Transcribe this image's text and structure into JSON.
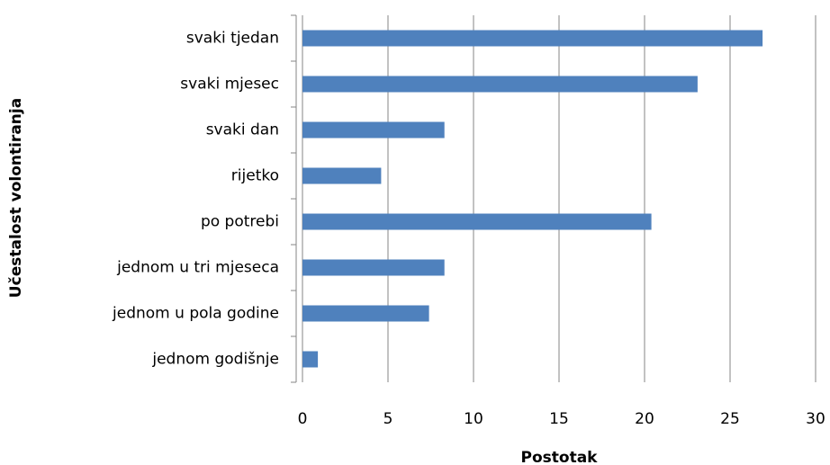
{
  "chart_data": {
    "type": "barh",
    "x_label": "Postotak",
    "y_label": "Učestalost volontiranja",
    "categories": [
      "svaki tjedan",
      "svaki mjesec",
      "svaki dan",
      "rijetko",
      "po potrebi",
      "jednom u tri mjeseca",
      "jednom u pola godine",
      "jednom godišnje"
    ],
    "values": [
      26.9,
      23.1,
      8.3,
      4.6,
      20.4,
      8.3,
      7.4,
      0.9
    ],
    "color": "#4f81bd",
    "xlim": [
      0,
      30
    ],
    "xticks": [
      0,
      5,
      10,
      15,
      20,
      25,
      30
    ],
    "grid": true
  }
}
